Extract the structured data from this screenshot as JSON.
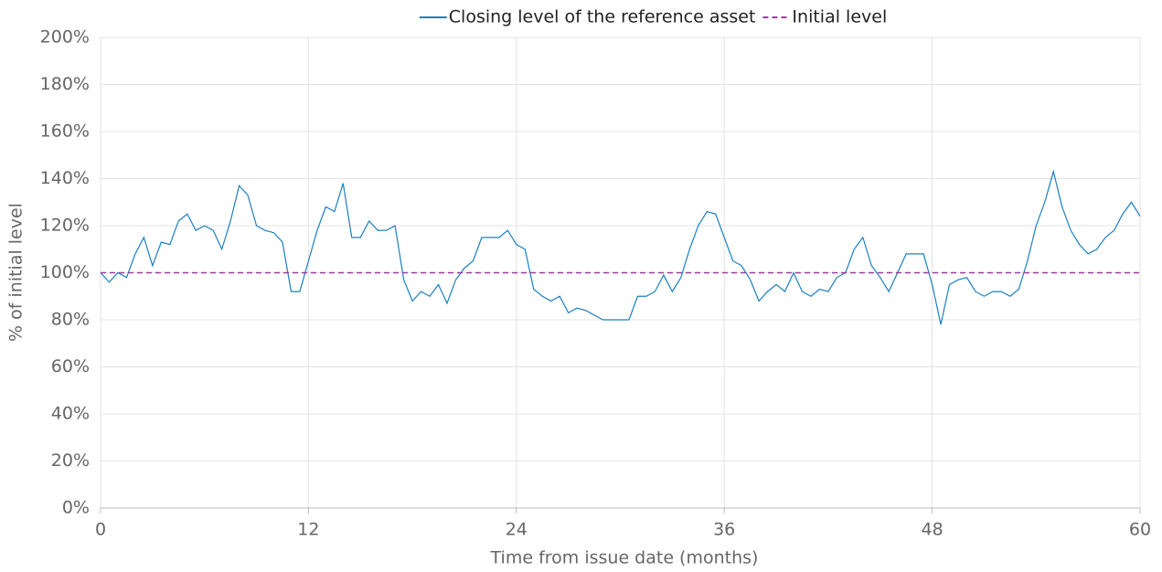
{
  "chart_data": {
    "type": "line",
    "xlabel": "Time from issue date (months)",
    "ylabel": "% of initial level",
    "legend": "top",
    "grid": true,
    "xlim": [
      0,
      60
    ],
    "xticks": [
      0,
      12,
      24,
      36,
      48,
      60
    ],
    "ylim": [
      0,
      200
    ],
    "yticks": [
      {
        "value": 0,
        "label": "0%"
      },
      {
        "value": 20,
        "label": "20%"
      },
      {
        "value": 40,
        "label": "40%"
      },
      {
        "value": 60,
        "label": "60%"
      },
      {
        "value": 80,
        "label": "80%"
      },
      {
        "value": 100,
        "label": "100%"
      },
      {
        "value": 120,
        "label": "120%"
      },
      {
        "value": 140,
        "label": "140%"
      },
      {
        "value": 160,
        "label": "160%"
      },
      {
        "value": 180,
        "label": "180%"
      },
      {
        "value": 200,
        "label": "200%"
      }
    ],
    "series": [
      {
        "name": "Closing level of the reference asset",
        "color": "#1a7fc1",
        "dash": false,
        "x": [
          0,
          0.5,
          1,
          1.5,
          2,
          2.5,
          3,
          3.5,
          4,
          4.5,
          5,
          5.5,
          6,
          6.5,
          7,
          7.5,
          8,
          8.5,
          9,
          9.5,
          10,
          10.5,
          11,
          11.5,
          12,
          12.5,
          13,
          13.5,
          14,
          14.5,
          15,
          15.5,
          16,
          16.5,
          17,
          17.5,
          18,
          18.5,
          19,
          19.5,
          20,
          20.5,
          21,
          21.5,
          22,
          22.5,
          23,
          23.5,
          24,
          24.5,
          25,
          25.5,
          26,
          26.5,
          27,
          27.5,
          28,
          28.5,
          29,
          29.5,
          30,
          30.5,
          31,
          31.5,
          32,
          32.5,
          33,
          33.5,
          34,
          34.5,
          35,
          35.5,
          36,
          36.5,
          37,
          37.5,
          38,
          38.5,
          39,
          39.5,
          40,
          40.5,
          41,
          41.5,
          42,
          42.5,
          43,
          43.5,
          44,
          44.5,
          45,
          45.5,
          46,
          46.5,
          47,
          47.5,
          48,
          48.5,
          49,
          49.5,
          50,
          50.5,
          51,
          51.5,
          52,
          52.5,
          53,
          53.5,
          54,
          54.5,
          55,
          55.5,
          56,
          56.5,
          57,
          57.5,
          58,
          58.5,
          59,
          59.5,
          60
        ],
        "values": [
          100,
          96,
          100,
          98,
          108,
          115,
          103,
          113,
          112,
          122,
          125,
          118,
          120,
          118,
          110,
          122,
          137,
          133,
          120,
          118,
          117,
          113,
          92,
          92,
          105,
          118,
          128,
          126,
          138,
          115,
          115,
          122,
          118,
          118,
          120,
          97,
          88,
          92,
          90,
          95,
          87,
          97,
          102,
          105,
          115,
          115,
          115,
          118,
          112,
          110,
          93,
          90,
          88,
          90,
          83,
          85,
          84,
          82,
          80,
          80,
          80,
          80,
          90,
          90,
          92,
          99,
          92,
          98,
          110,
          120,
          126,
          125,
          115,
          105,
          103,
          97,
          88,
          92,
          95,
          92,
          100,
          92,
          90,
          93,
          92,
          98,
          100,
          110,
          115,
          103,
          98,
          92,
          100,
          108,
          108,
          108,
          95,
          78,
          95,
          97,
          98,
          92,
          90,
          92,
          92,
          90,
          93,
          105,
          120,
          130,
          143,
          128,
          118,
          112,
          108,
          110,
          115,
          118,
          125,
          130,
          124
        ]
      },
      {
        "name": "Initial level",
        "color": "#9b3c9b",
        "dash": true,
        "x": [
          0,
          60
        ],
        "values": [
          100,
          100
        ]
      }
    ]
  }
}
